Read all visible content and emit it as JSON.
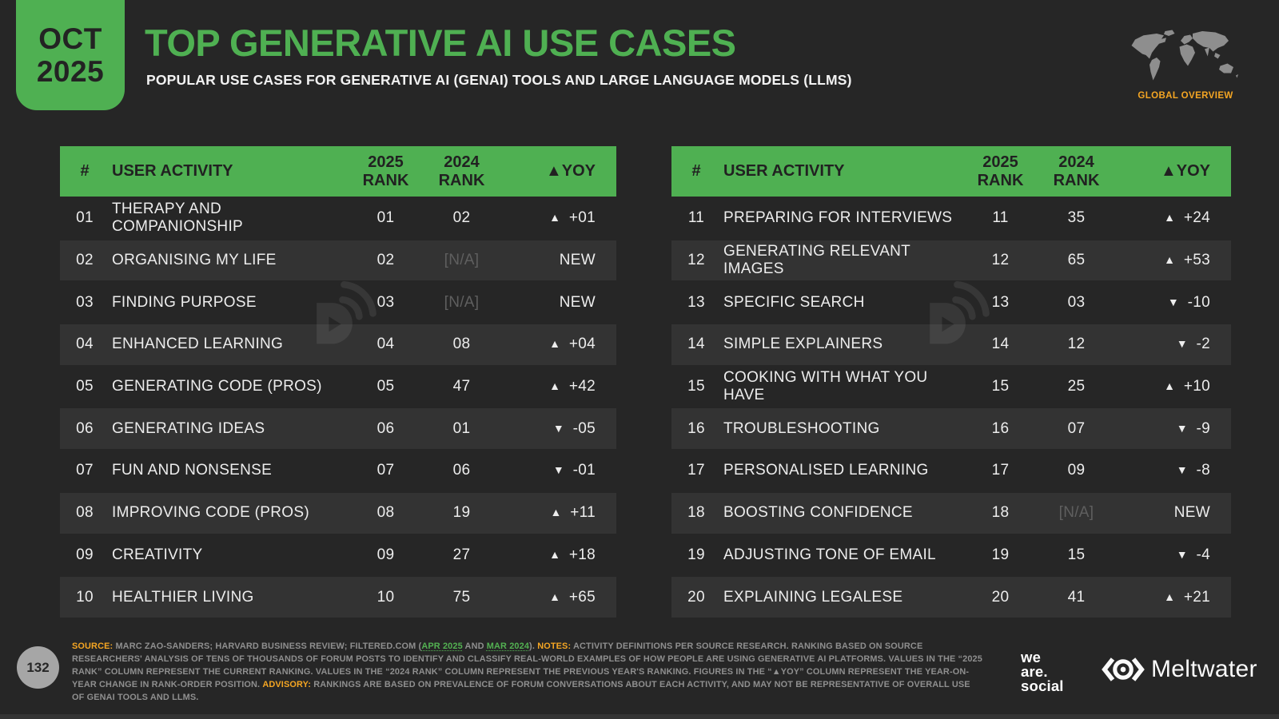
{
  "colors": {
    "background": "#262626",
    "accent_green": "#4fb052",
    "accent_orange": "#f5a623",
    "row_alt": "#333333",
    "table_header_text": "#212121",
    "body_text": "#ededed",
    "muted_footnote_text": "#8f8f8f",
    "na_text": "#5f5f5f",
    "link_green": "#53b152"
  },
  "header": {
    "date_badge": {
      "month": "OCT",
      "year": "2025"
    },
    "title": "TOP GENERATIVE AI USE CASES",
    "subtitle": "POPULAR USE CASES FOR GENERATIVE AI (GENAI) TOOLS AND LARGE LANGUAGE MODELS (LLMS)",
    "region_label": "GLOBAL OVERVIEW",
    "map_icon": "world-map-icon"
  },
  "table_columns": [
    "#",
    "USER ACTIVITY",
    "2025 RANK",
    "2024 RANK",
    "▲YOY"
  ],
  "tables": [
    {
      "rows": [
        {
          "num": "01",
          "activity": "THERAPY AND COMPANIONSHIP",
          "rank_2025": "01",
          "rank_2024": "02",
          "yoy": "+01",
          "yoy_dir": "up"
        },
        {
          "num": "02",
          "activity": "ORGANISING MY LIFE",
          "rank_2025": "02",
          "rank_2024": "[N/A]",
          "yoy": "NEW",
          "yoy_dir": "new"
        },
        {
          "num": "03",
          "activity": "FINDING PURPOSE",
          "rank_2025": "03",
          "rank_2024": "[N/A]",
          "yoy": "NEW",
          "yoy_dir": "new"
        },
        {
          "num": "04",
          "activity": "ENHANCED LEARNING",
          "rank_2025": "04",
          "rank_2024": "08",
          "yoy": "+04",
          "yoy_dir": "up"
        },
        {
          "num": "05",
          "activity": "GENERATING CODE (PROS)",
          "rank_2025": "05",
          "rank_2024": "47",
          "yoy": "+42",
          "yoy_dir": "up"
        },
        {
          "num": "06",
          "activity": "GENERATING IDEAS",
          "rank_2025": "06",
          "rank_2024": "01",
          "yoy": "-05",
          "yoy_dir": "down"
        },
        {
          "num": "07",
          "activity": "FUN AND NONSENSE",
          "rank_2025": "07",
          "rank_2024": "06",
          "yoy": "-01",
          "yoy_dir": "down"
        },
        {
          "num": "08",
          "activity": "IMPROVING CODE (PROS)",
          "rank_2025": "08",
          "rank_2024": "19",
          "yoy": "+11",
          "yoy_dir": "up"
        },
        {
          "num": "09",
          "activity": "CREATIVITY",
          "rank_2025": "09",
          "rank_2024": "27",
          "yoy": "+18",
          "yoy_dir": "up"
        },
        {
          "num": "10",
          "activity": "HEALTHIER LIVING",
          "rank_2025": "10",
          "rank_2024": "75",
          "yoy": "+65",
          "yoy_dir": "up"
        }
      ]
    },
    {
      "rows": [
        {
          "num": "11",
          "activity": "PREPARING FOR INTERVIEWS",
          "rank_2025": "11",
          "rank_2024": "35",
          "yoy": "+24",
          "yoy_dir": "up"
        },
        {
          "num": "12",
          "activity": "GENERATING RELEVANT IMAGES",
          "rank_2025": "12",
          "rank_2024": "65",
          "yoy": "+53",
          "yoy_dir": "up"
        },
        {
          "num": "13",
          "activity": "SPECIFIC SEARCH",
          "rank_2025": "13",
          "rank_2024": "03",
          "yoy": "-10",
          "yoy_dir": "down"
        },
        {
          "num": "14",
          "activity": "SIMPLE EXPLAINERS",
          "rank_2025": "14",
          "rank_2024": "12",
          "yoy": "-2",
          "yoy_dir": "down"
        },
        {
          "num": "15",
          "activity": "COOKING WITH WHAT YOU HAVE",
          "rank_2025": "15",
          "rank_2024": "25",
          "yoy": "+10",
          "yoy_dir": "up"
        },
        {
          "num": "16",
          "activity": "TROUBLESHOOTING",
          "rank_2025": "16",
          "rank_2024": "07",
          "yoy": "-9",
          "yoy_dir": "down"
        },
        {
          "num": "17",
          "activity": "PERSONALISED LEARNING",
          "rank_2025": "17",
          "rank_2024": "09",
          "yoy": "-8",
          "yoy_dir": "down"
        },
        {
          "num": "18",
          "activity": "BOOSTING CONFIDENCE",
          "rank_2025": "18",
          "rank_2024": "[N/A]",
          "yoy": "NEW",
          "yoy_dir": "new"
        },
        {
          "num": "19",
          "activity": "ADJUSTING TONE OF EMAIL",
          "rank_2025": "19",
          "rank_2024": "15",
          "yoy": "-4",
          "yoy_dir": "down"
        },
        {
          "num": "20",
          "activity": "EXPLAINING LEGALESE",
          "rank_2025": "20",
          "rank_2024": "41",
          "yoy": "+21",
          "yoy_dir": "up"
        }
      ]
    }
  ],
  "chart_data": {
    "type": "table",
    "title": "TOP GENERATIVE AI USE CASES",
    "subtitle": "POPULAR USE CASES FOR GENERATIVE AI (GENAI) TOOLS AND LARGE LANGUAGE MODELS (LLMS)",
    "columns": [
      "#",
      "USER ACTIVITY",
      "2025 RANK",
      "2024 RANK",
      "YOY CHANGE"
    ],
    "rows": [
      [
        "01",
        "THERAPY AND COMPANIONSHIP",
        "01",
        "02",
        "+01"
      ],
      [
        "02",
        "ORGANISING MY LIFE",
        "02",
        "[N/A]",
        "NEW"
      ],
      [
        "03",
        "FINDING PURPOSE",
        "03",
        "[N/A]",
        "NEW"
      ],
      [
        "04",
        "ENHANCED LEARNING",
        "04",
        "08",
        "+04"
      ],
      [
        "05",
        "GENERATING CODE (PROS)",
        "05",
        "47",
        "+42"
      ],
      [
        "06",
        "GENERATING IDEAS",
        "06",
        "01",
        "-05"
      ],
      [
        "07",
        "FUN AND NONSENSE",
        "07",
        "06",
        "-01"
      ],
      [
        "08",
        "IMPROVING CODE (PROS)",
        "08",
        "19",
        "+11"
      ],
      [
        "09",
        "CREATIVITY",
        "09",
        "27",
        "+18"
      ],
      [
        "10",
        "HEALTHIER LIVING",
        "10",
        "75",
        "+65"
      ],
      [
        "11",
        "PREPARING FOR INTERVIEWS",
        "11",
        "35",
        "+24"
      ],
      [
        "12",
        "GENERATING RELEVANT IMAGES",
        "12",
        "65",
        "+53"
      ],
      [
        "13",
        "SPECIFIC SEARCH",
        "13",
        "03",
        "-10"
      ],
      [
        "14",
        "SIMPLE EXPLAINERS",
        "14",
        "12",
        "-2"
      ],
      [
        "15",
        "COOKING WITH WHAT YOU HAVE",
        "15",
        "25",
        "+10"
      ],
      [
        "16",
        "TROUBLESHOOTING",
        "16",
        "07",
        "-9"
      ],
      [
        "17",
        "PERSONALISED LEARNING",
        "17",
        "09",
        "-8"
      ],
      [
        "18",
        "BOOSTING CONFIDENCE",
        "18",
        "[N/A]",
        "NEW"
      ],
      [
        "19",
        "ADJUSTING TONE OF EMAIL",
        "19",
        "15",
        "-4"
      ],
      [
        "20",
        "EXPLAINING LEGALESE",
        "20",
        "41",
        "+21"
      ]
    ]
  },
  "footer": {
    "page_number": "132",
    "note_segments": [
      {
        "style": "orange",
        "text": "SOURCE:"
      },
      {
        "style": "normal",
        "text": " MARC ZAO-SANDERS; HARVARD BUSINESS REVIEW; FILTERED.COM ("
      },
      {
        "style": "link",
        "text": "APR 2025"
      },
      {
        "style": "normal",
        "text": " AND "
      },
      {
        "style": "link",
        "text": "MAR 2024"
      },
      {
        "style": "normal",
        "text": "). "
      },
      {
        "style": "orange",
        "text": "NOTES:"
      },
      {
        "style": "normal",
        "text": " ACTIVITY DEFINITIONS PER SOURCE RESEARCH. RANKING BASED ON SOURCE RESEARCHERS' ANALYSIS OF TENS OF THOUSANDS OF FORUM POSTS TO IDENTIFY AND CLASSIFY REAL-WORLD EXAMPLES OF HOW PEOPLE ARE USING GENERATIVE AI PLATFORMS. VALUES IN THE “2025 RANK” COLUMN REPRESENT THE CURRENT RANKING. VALUES IN THE “2024 RANK” COLUMN REPRESENT THE PREVIOUS YEAR'S RANKING. FIGURES IN THE “▲YOY” COLUMN REPRESENT THE YEAR-ON-YEAR CHANGE IN RANK-ORDER POSITION. "
      },
      {
        "style": "orange",
        "text": "ADVISORY:"
      },
      {
        "style": "normal",
        "text": " RANKINGS ARE BASED ON PREVALENCE OF FORUM CONVERSATIONS ABOUT EACH ACTIVITY, AND MAY NOT BE REPRESENTATIVE OF OVERALL USE OF GENAI TOOLS AND LLMS."
      }
    ],
    "we_are_social_lines": [
      "we",
      "are.",
      "social"
    ],
    "meltwater_label": "Meltwater"
  }
}
